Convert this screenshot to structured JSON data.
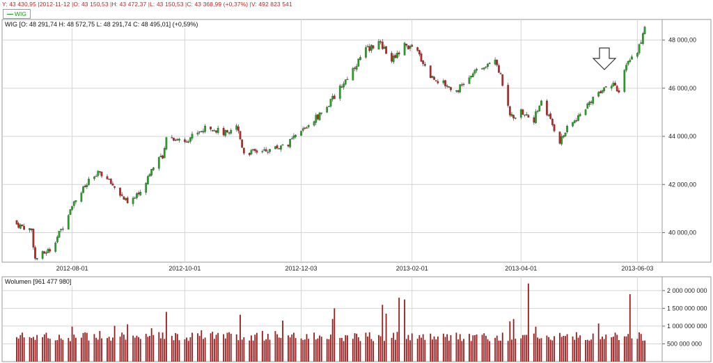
{
  "header": {
    "cursor_info": "Y: 43 430,95 |2012-11-12 |O: 43 150,53 |H: 43 472,37 |L: 43 150,53 |C: 43 368,99 (+0,37%) |V: 492 823 541",
    "legend_label": "WIG"
  },
  "colors": {
    "up": "#1fa81f",
    "down": "#cc1f1f",
    "volume": "#9b1a1a",
    "grid": "#d4d4d4",
    "frame": "#9a9a9a",
    "info_text": "#cc1f1f"
  },
  "icons": {
    "annotation": "down-arrow-outline"
  },
  "chart_data": [
    {
      "type": "candlestick",
      "title": "WIG [O: 48 291,74  H: 48 572,75  L: 48 291,74  C: 48 495,01] (+0,59%)",
      "ylim": [
        38800,
        48800
      ],
      "y_ticks": [
        "48 000,00",
        "46 000,00",
        "44 000,00",
        "42 000,00",
        "40 000,00"
      ],
      "y_tick_values": [
        48000,
        46000,
        44000,
        42000,
        40000
      ],
      "x_ticks": [
        "2012-08-01",
        "2012-10-01",
        "2012-12-03",
        "2013-02-01",
        "2013-04-01",
        "2013-06-03"
      ],
      "grid": true,
      "annotation": "down arrow above candles near 2013-05",
      "close_anchors": [
        [
          "2012-07-02",
          40350
        ],
        [
          "2012-07-10",
          40100
        ],
        [
          "2012-07-12",
          38900
        ],
        [
          "2012-07-20",
          39300
        ],
        [
          "2012-07-26",
          40100
        ],
        [
          "2012-08-01",
          41200
        ],
        [
          "2012-08-10",
          42100
        ],
        [
          "2012-08-16",
          42500
        ],
        [
          "2012-08-24",
          41900
        ],
        [
          "2012-08-31",
          41200
        ],
        [
          "2012-09-07",
          41700
        ],
        [
          "2012-09-14",
          42800
        ],
        [
          "2012-09-19",
          43200
        ],
        [
          "2012-09-21",
          44000
        ],
        [
          "2012-10-01",
          43800
        ],
        [
          "2012-10-08",
          44200
        ],
        [
          "2012-10-15",
          44400
        ],
        [
          "2012-10-22",
          44100
        ],
        [
          "2012-10-29",
          44500
        ],
        [
          "2012-11-02",
          43300
        ],
        [
          "2012-11-12",
          43400
        ],
        [
          "2012-11-19",
          43500
        ],
        [
          "2012-11-26",
          43700
        ],
        [
          "2012-12-03",
          44200
        ],
        [
          "2012-12-10",
          44700
        ],
        [
          "2012-12-17",
          45200
        ],
        [
          "2012-12-24",
          46000
        ],
        [
          "2012-12-31",
          46800
        ],
        [
          "2013-01-07",
          47600
        ],
        [
          "2013-01-14",
          47900
        ],
        [
          "2013-01-21",
          47200
        ],
        [
          "2013-01-28",
          47800
        ],
        [
          "2013-02-04",
          47500
        ],
        [
          "2013-02-11",
          46500
        ],
        [
          "2013-02-18",
          46200
        ],
        [
          "2013-02-25",
          45900
        ],
        [
          "2013-03-04",
          46400
        ],
        [
          "2013-03-11",
          46900
        ],
        [
          "2013-03-18",
          47300
        ],
        [
          "2013-03-22",
          46200
        ],
        [
          "2013-03-26",
          44800
        ],
        [
          "2013-04-01",
          45000
        ],
        [
          "2013-04-08",
          44700
        ],
        [
          "2013-04-12",
          45500
        ],
        [
          "2013-04-22",
          43800
        ],
        [
          "2013-04-26",
          44300
        ],
        [
          "2013-05-03",
          44900
        ],
        [
          "2013-05-10",
          45600
        ],
        [
          "2013-05-15",
          46000
        ],
        [
          "2013-05-20",
          46200
        ],
        [
          "2013-05-24",
          45800
        ],
        [
          "2013-05-29",
          47200
        ],
        [
          "2013-06-03",
          47500
        ],
        [
          "2013-06-07",
          48500
        ]
      ]
    },
    {
      "type": "bar",
      "title": "Wolumen [961 477 980]",
      "ylim": [
        0,
        2350000000
      ],
      "y_ticks": [
        "2 000 000 000",
        "1 500 000 000",
        "1 000 000 000",
        "500 000 000"
      ],
      "y_tick_values": [
        2000000000,
        1500000000,
        1000000000,
        500000000
      ],
      "baseline": 800000000,
      "spikes": [
        [
          "2013-04-05",
          2200000000
        ],
        [
          "2013-05-30",
          1900000000
        ],
        [
          "2013-01-25",
          1800000000
        ],
        [
          "2013-01-28",
          1750000000
        ],
        [
          "2013-01-16",
          1600000000
        ],
        [
          "2012-12-21",
          1500000000
        ],
        [
          "2012-12-20",
          1200000000
        ],
        [
          "2013-01-18",
          1350000000
        ],
        [
          "2012-09-21",
          1400000000
        ],
        [
          "2012-10-31",
          1320000000
        ],
        [
          "2012-08-31",
          1050000000
        ],
        [
          "2013-03-28",
          1200000000
        ]
      ]
    }
  ]
}
